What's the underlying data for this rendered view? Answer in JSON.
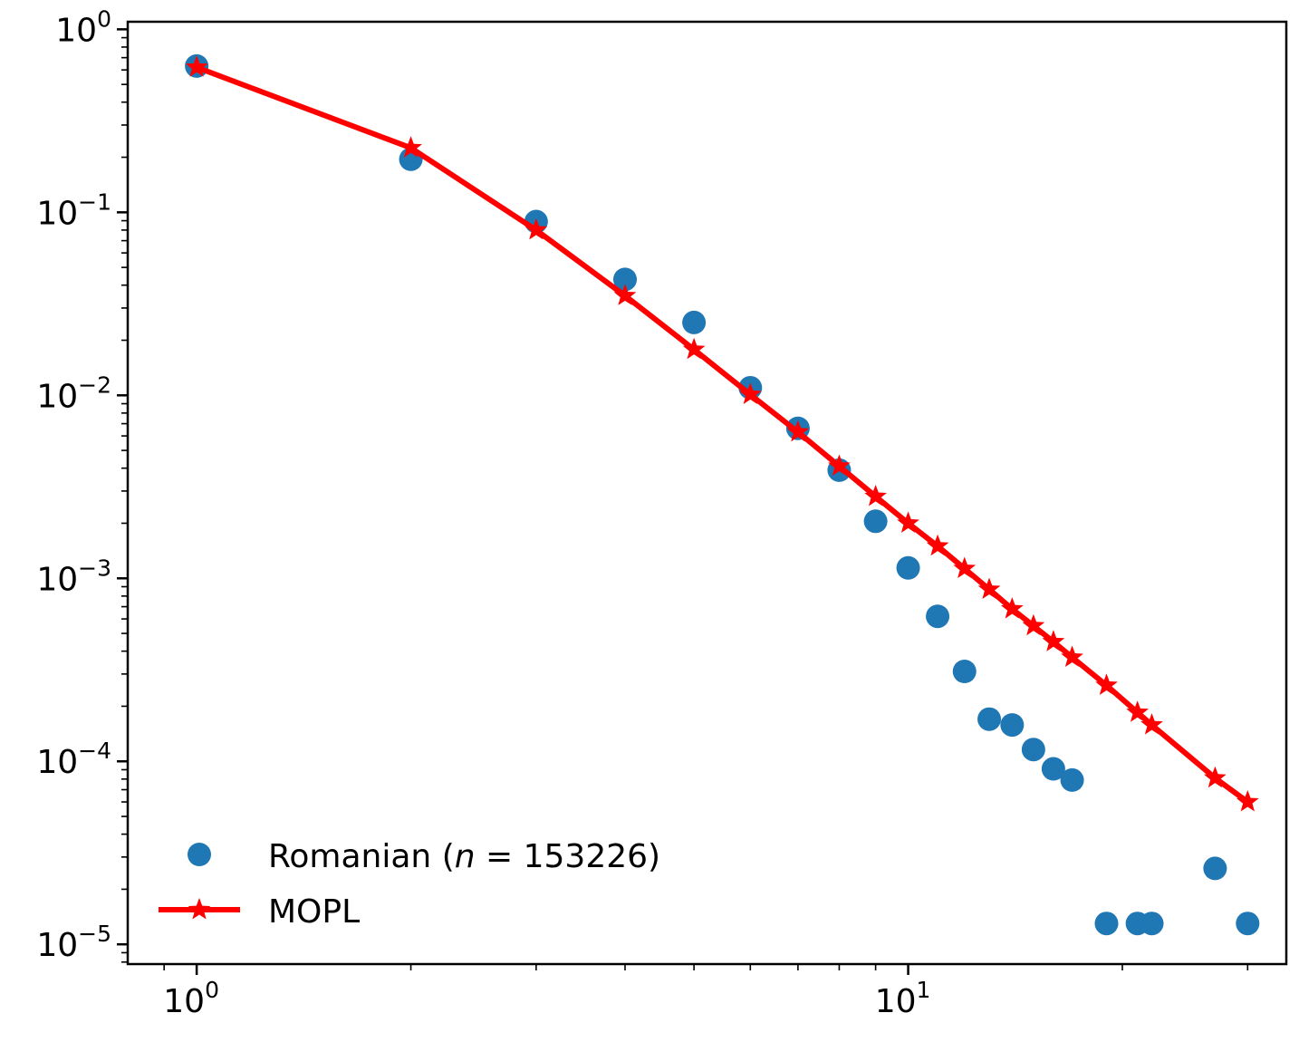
{
  "chart_data": {
    "type": "scatter",
    "xscale": "log",
    "yscale": "log",
    "xlim": [
      0.8,
      34
    ],
    "ylim": [
      7.8e-06,
      1.1
    ],
    "grid": false,
    "legend_position": "lower-left",
    "x_ticks": [
      {
        "base": "10",
        "exp": "0",
        "value": 1
      },
      {
        "base": "10",
        "exp": "1",
        "value": 10
      }
    ],
    "y_ticks": [
      {
        "base": "10",
        "exp": "0",
        "value": 1
      },
      {
        "base": "10",
        "exp": "−1",
        "value": 0.1
      },
      {
        "base": "10",
        "exp": "−2",
        "value": 0.01
      },
      {
        "base": "10",
        "exp": "−3",
        "value": 0.001
      },
      {
        "base": "10",
        "exp": "−4",
        "value": 0.0001
      },
      {
        "base": "10",
        "exp": "−5",
        "value": 1e-05
      }
    ],
    "series": [
      {
        "name": "Romanian (n = 153226)",
        "legend_prefix": "Romanian (",
        "legend_italic": "n",
        "legend_suffix": " = 153226)",
        "style": "markers",
        "marker": "circle",
        "color": "#1f77b4",
        "x": [
          1,
          2,
          3,
          4,
          5,
          6,
          7,
          8,
          9,
          10,
          11,
          12,
          13,
          14,
          15,
          16,
          17,
          19,
          21,
          22,
          27,
          30
        ],
        "y": [
          0.63,
          0.195,
          0.089,
          0.043,
          0.025,
          0.011,
          0.0066,
          0.0039,
          0.00205,
          0.00114,
          0.00062,
          0.00031,
          0.00017,
          0.000158,
          0.000116,
          9.1e-05,
          7.9e-05,
          1.3e-05,
          1.3e-05,
          1.3e-05,
          2.6e-05,
          1.3e-05
        ]
      },
      {
        "name": "MOPL",
        "style": "line-markers",
        "marker": "star",
        "color": "#ff0000",
        "x": [
          1,
          2,
          3,
          4,
          5,
          6,
          7,
          8,
          9,
          10,
          11,
          12,
          13,
          14,
          15,
          16,
          17,
          19,
          21,
          22,
          27,
          30
        ],
        "y": [
          0.62,
          0.225,
          0.08,
          0.035,
          0.0178,
          0.0101,
          0.0063,
          0.0041,
          0.0028,
          0.002,
          0.0015,
          0.00113,
          0.00087,
          0.00068,
          0.00055,
          0.00045,
          0.00037,
          0.00026,
          0.000185,
          0.000158,
          8.1e-05,
          6e-05
        ]
      }
    ]
  }
}
